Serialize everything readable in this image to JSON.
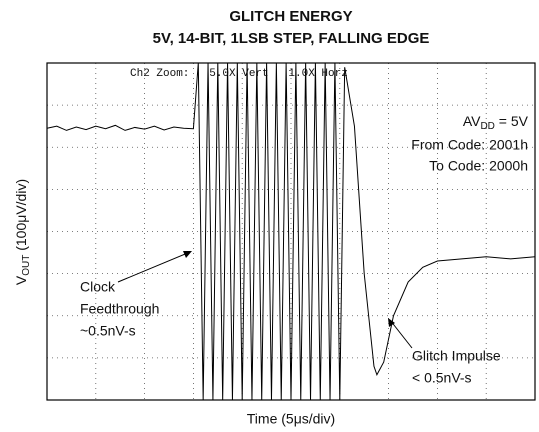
{
  "chart_data": {
    "type": "line",
    "title": "GLITCH ENERGY",
    "subtitle": "5V, 14-BIT, 1LSB STEP, FALLING EDGE",
    "x_label": "Time (5μs/div)",
    "y_label": {
      "main": "V",
      "sub": "OUT",
      "rest": " (100μV/div)"
    },
    "scope_header": "Ch2 Zoom:   5.0X Vert   1.0X Horz",
    "annotations": {
      "avdd": {
        "main": "AV",
        "sub": "DD",
        "rest": " = 5V"
      },
      "from_code": "From Code: 2001h",
      "to_code": "To Code: 2000h",
      "clock": [
        "Clock",
        "Feedthrough",
        "~0.5nV-s"
      ],
      "glitch": [
        "Glitch Impulse",
        "< 0.5nV-s"
      ]
    },
    "xlim": [
      0,
      10
    ],
    "ylim": [
      0,
      8
    ],
    "xticks": [
      0,
      1,
      2,
      3,
      4,
      5,
      6,
      7,
      8,
      9,
      10
    ],
    "yticks": [
      0,
      1,
      2,
      3,
      4,
      5,
      6,
      7,
      8
    ],
    "grid": true,
    "series": [
      {
        "color": "#000000",
        "x": [
          0,
          0.2,
          0.4,
          0.6,
          0.8,
          1.0,
          1.2,
          1.4,
          1.6,
          1.8,
          2.0,
          2.2,
          2.4,
          2.6,
          2.8,
          3.0,
          3.1,
          3.2,
          3.3,
          3.4,
          3.5,
          3.6,
          3.7,
          3.8,
          3.9,
          4.0,
          4.1,
          4.2,
          4.3,
          4.4,
          4.5,
          4.6,
          4.7,
          4.8,
          4.9,
          5.0,
          5.1,
          5.2,
          5.3,
          5.4,
          5.5,
          5.6,
          5.7,
          5.8,
          5.9,
          6.0,
          6.1,
          6.3,
          6.5,
          6.7,
          6.76,
          6.9,
          7.1,
          7.4,
          7.7,
          8.0,
          8.5,
          9.0,
          9.5,
          10.0
        ],
        "values": [
          6.45,
          6.5,
          6.4,
          6.48,
          6.42,
          6.5,
          6.44,
          6.52,
          6.4,
          6.47,
          6.43,
          6.5,
          6.41,
          6.48,
          6.45,
          6.44,
          8,
          0,
          8,
          0,
          8,
          0,
          8,
          0,
          8,
          0,
          8,
          0,
          8,
          0,
          8,
          0,
          8,
          0,
          8,
          0,
          8,
          0,
          8,
          0,
          8,
          0,
          8,
          0,
          8,
          0,
          7.9,
          6.5,
          3,
          0.8,
          0.6,
          0.9,
          2,
          2.8,
          3.15,
          3.3,
          3.35,
          3.4,
          3.35,
          3.4
        ]
      }
    ]
  }
}
